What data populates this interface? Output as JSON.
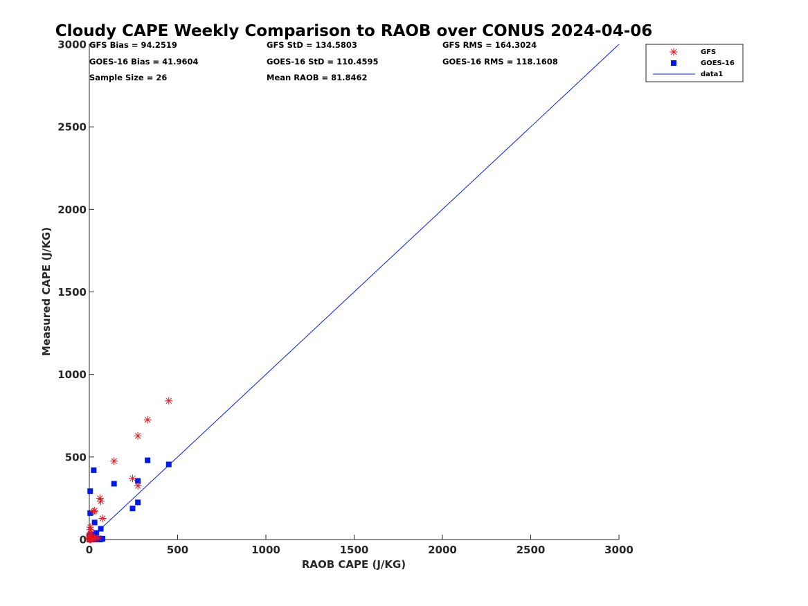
{
  "chart_data": {
    "type": "scatter",
    "title": "Cloudy CAPE Weekly Comparison to RAOB over CONUS 2024-04-06",
    "xlabel": "RAOB CAPE (J/KG)",
    "ylabel": "Measured CAPE (J/KG)",
    "xlim": [
      0,
      3000
    ],
    "ylim": [
      0,
      3000
    ],
    "xticks": [
      0,
      500,
      1000,
      1500,
      2000,
      2500,
      3000
    ],
    "yticks": [
      0,
      500,
      1000,
      1500,
      2000,
      2500,
      3000
    ],
    "grid": false,
    "legend_position": "top-right",
    "stats": {
      "gfs_bias": "GFS Bias = 94.2519",
      "gfs_std": "GFS StD = 134.5803",
      "gfs_rms": "GFS RMS = 164.3024",
      "goes_bias": "GOES-16 Bias = 41.9604",
      "goes_std": "GOES-16 StD = 110.4595",
      "goes_rms": "GOES-16 RMS = 118.1608",
      "sample_size": "Sample Size = 26",
      "mean_raob": "Mean RAOB = 81.8462"
    },
    "series": [
      {
        "name": "GFS",
        "marker": "asterisk",
        "color": "#e8141c",
        "points": [
          [
            450,
            840
          ],
          [
            330,
            725
          ],
          [
            275,
            628
          ],
          [
            140,
            475
          ],
          [
            245,
            370
          ],
          [
            275,
            325
          ],
          [
            60,
            250
          ],
          [
            65,
            232
          ],
          [
            75,
            128
          ],
          [
            30,
            175
          ],
          [
            25,
            170
          ],
          [
            5,
            75
          ],
          [
            5,
            60
          ],
          [
            10,
            40
          ],
          [
            5,
            20
          ],
          [
            15,
            15
          ],
          [
            30,
            10
          ],
          [
            0,
            5
          ],
          [
            0,
            0
          ],
          [
            5,
            0
          ],
          [
            0,
            25
          ],
          [
            20,
            5
          ],
          [
            10,
            0
          ],
          [
            35,
            5
          ],
          [
            50,
            10
          ],
          [
            0,
            12
          ]
        ]
      },
      {
        "name": "GOES-16",
        "marker": "square",
        "color": "#0018f0",
        "points": [
          [
            450,
            455
          ],
          [
            330,
            480
          ],
          [
            25,
            420
          ],
          [
            140,
            338
          ],
          [
            275,
            355
          ],
          [
            5,
            293
          ],
          [
            275,
            225
          ],
          [
            245,
            188
          ],
          [
            5,
            160
          ],
          [
            30,
            103
          ],
          [
            65,
            65
          ],
          [
            40,
            40
          ],
          [
            10,
            30
          ],
          [
            0,
            20
          ],
          [
            20,
            10
          ],
          [
            55,
            5
          ],
          [
            75,
            5
          ],
          [
            5,
            5
          ],
          [
            0,
            0
          ],
          [
            10,
            0
          ],
          [
            20,
            0
          ],
          [
            60,
            0
          ],
          [
            70,
            3
          ],
          [
            35,
            0
          ],
          [
            15,
            15
          ],
          [
            0,
            10
          ]
        ]
      },
      {
        "name": "data1",
        "type": "line",
        "color": "#0018f0",
        "x": [
          0,
          3000
        ],
        "y": [
          0,
          3000
        ]
      }
    ]
  }
}
